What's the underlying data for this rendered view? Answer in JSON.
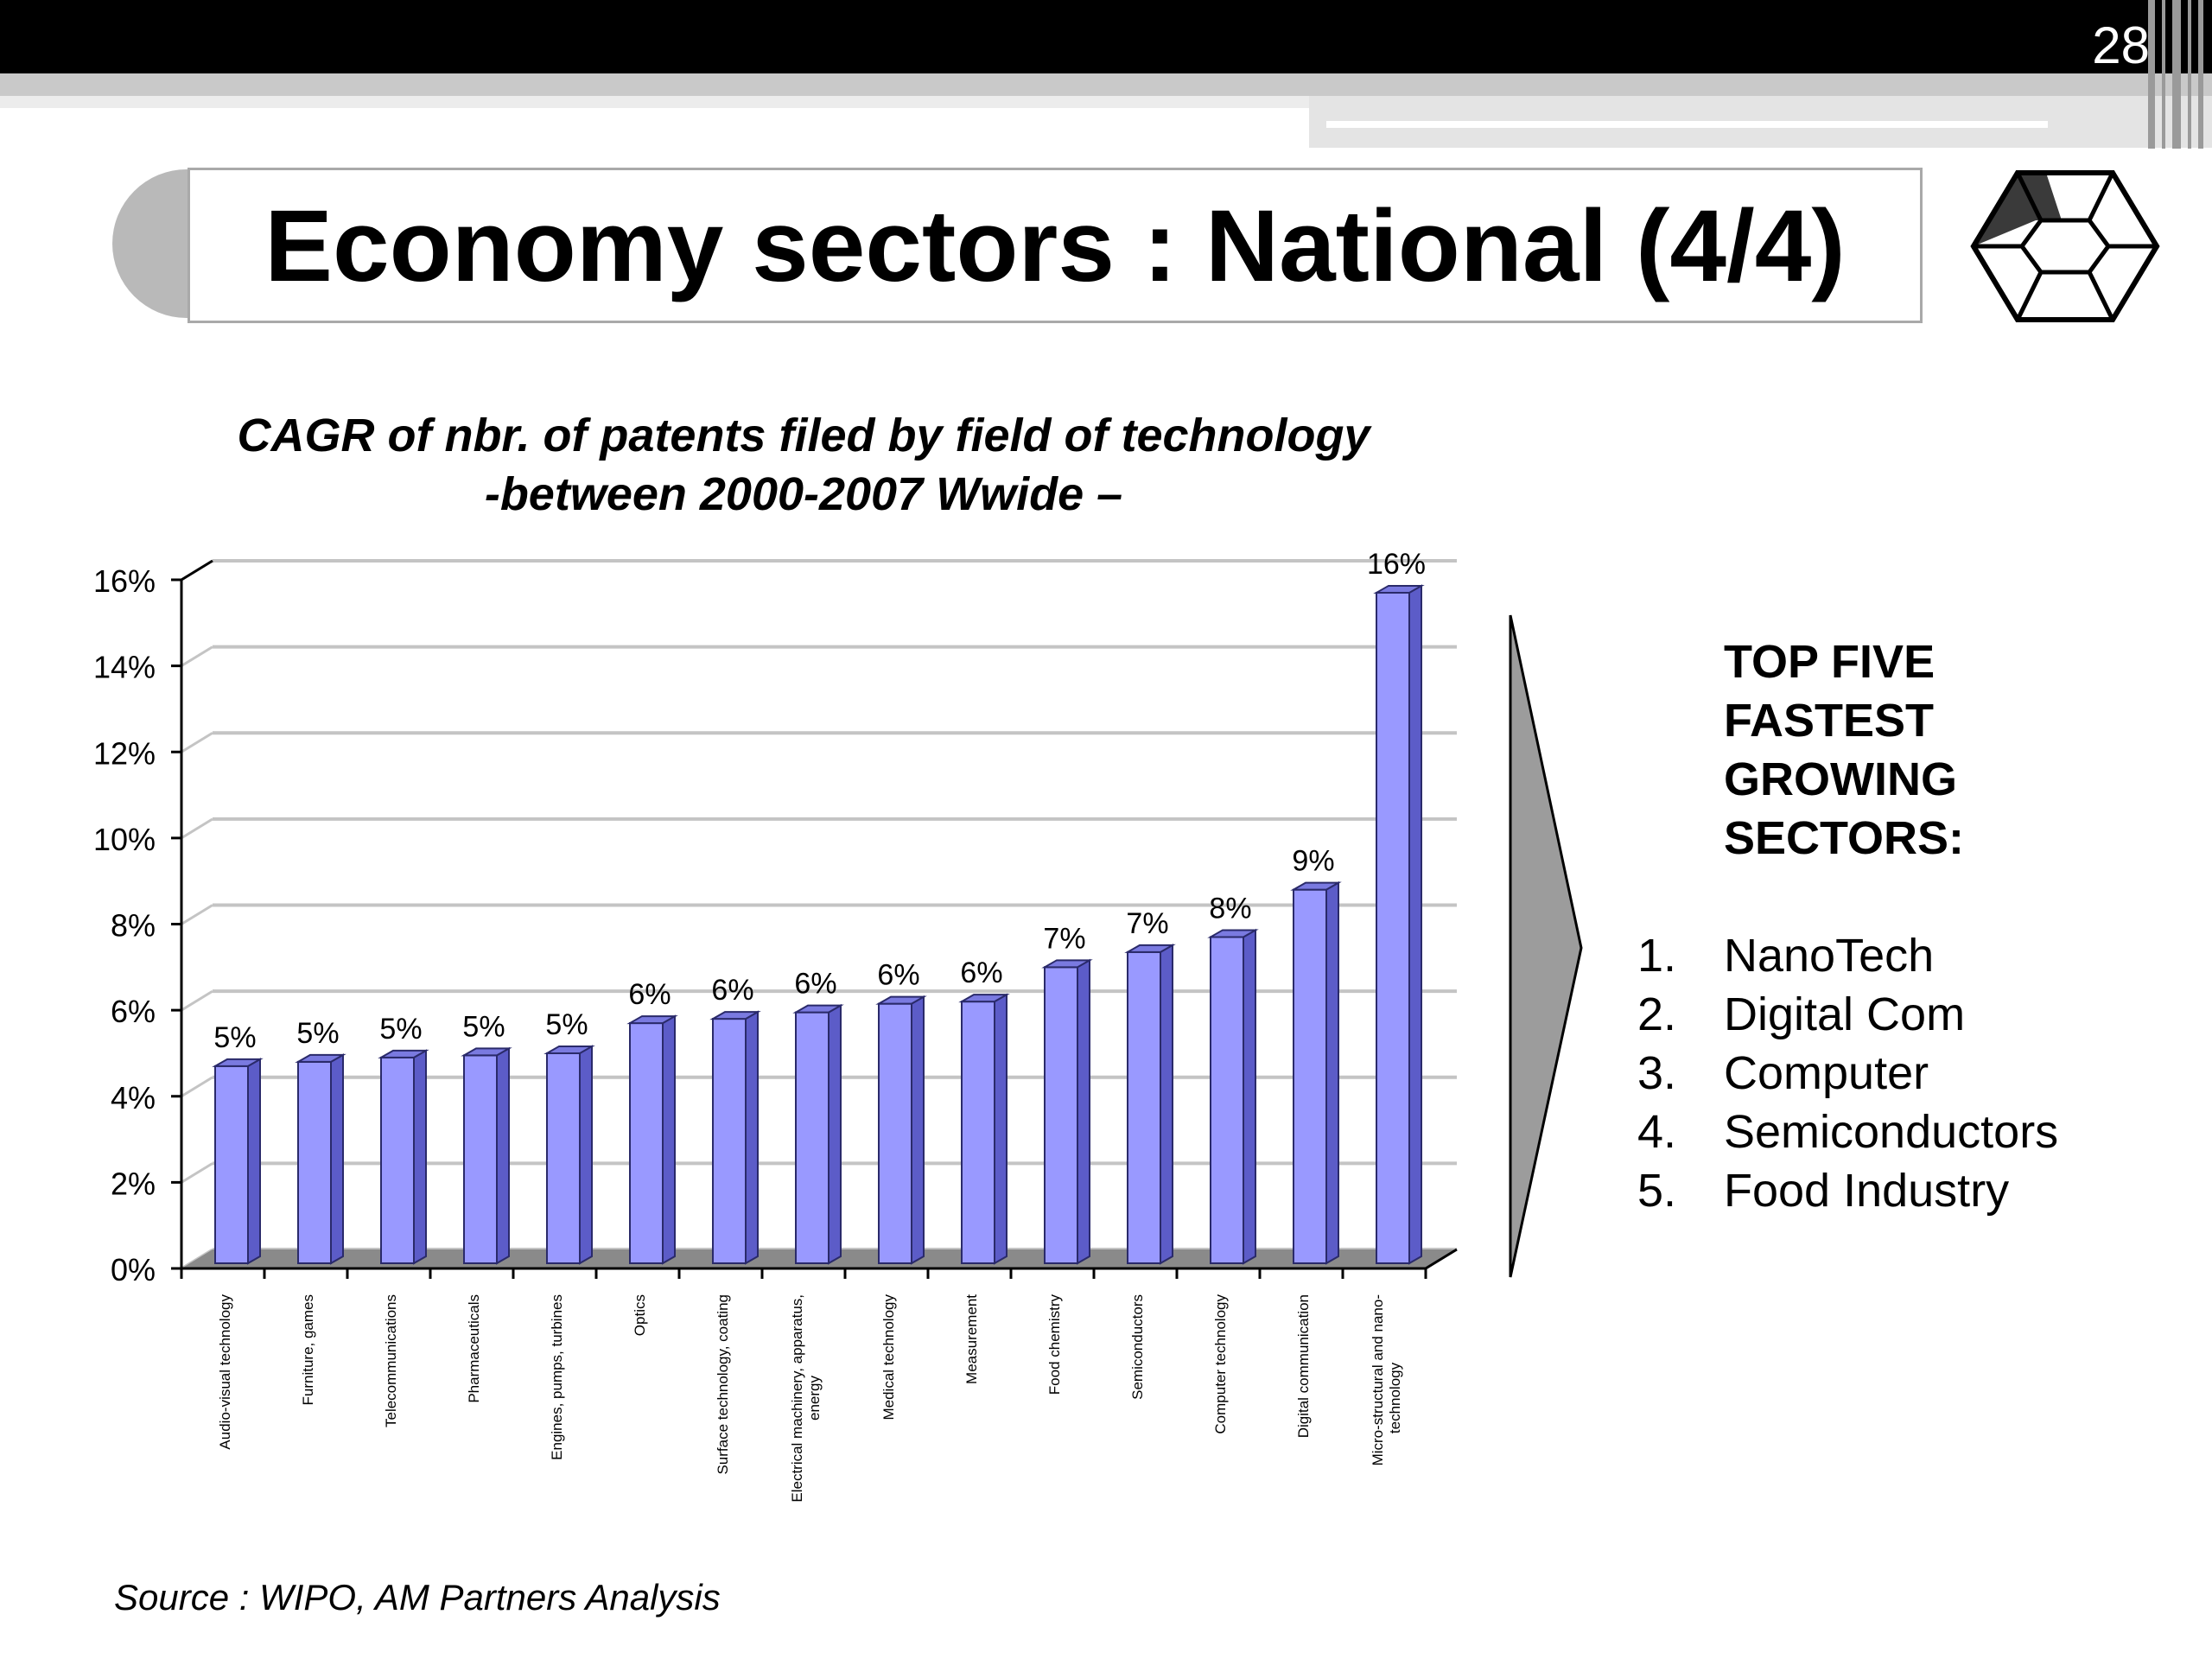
{
  "slide": {
    "page_number": "28",
    "title": "Economy sectors : National (4/4)",
    "source": "Source : WIPO, AM Partners Analysis"
  },
  "chart_data": {
    "type": "bar",
    "title_line1": "CAGR of nbr. of patents filed by field of technology",
    "title_line2": "-between 2000-2007 Wwide –",
    "categories": [
      "Audio-visual technology",
      "Furniture, games",
      "Telecommunications",
      "Pharmaceuticals",
      "Engines, pumps, turbines",
      "Optics",
      "Surface technology, coating",
      "Electrical machinery, apparatus, energy",
      "Medical technology",
      "Measurement",
      "Food chemistry",
      "Semiconductors",
      "Computer technology",
      "Digital communication",
      "Micro-structural and nano-technology"
    ],
    "category_lines": [
      [
        "Audio-visual technology"
      ],
      [
        "Furniture, games"
      ],
      [
        "Telecommunications"
      ],
      [
        "Pharmaceuticals"
      ],
      [
        "Engines, pumps, turbines"
      ],
      [
        "Optics"
      ],
      [
        "Surface technology, coating"
      ],
      [
        "Electrical machinery, apparatus,",
        "energy"
      ],
      [
        "Medical technology"
      ],
      [
        "Measurement"
      ],
      [
        "Food chemistry"
      ],
      [
        "Semiconductors"
      ],
      [
        "Computer technology"
      ],
      [
        "Digital communication"
      ],
      [
        "Micro-structural and nano-",
        "technology"
      ]
    ],
    "values": [
      4.7,
      4.8,
      4.9,
      4.95,
      5.0,
      5.7,
      5.8,
      5.95,
      6.15,
      6.2,
      7.0,
      7.35,
      7.7,
      8.8,
      15.7
    ],
    "data_labels": [
      "5%",
      "5%",
      "5%",
      "5%",
      "5%",
      "6%",
      "6%",
      "6%",
      "6%",
      "6%",
      "7%",
      "7%",
      "8%",
      "9%",
      "16%"
    ],
    "ylim": [
      0,
      16
    ],
    "y_ticks": [
      0,
      2,
      4,
      6,
      8,
      10,
      12,
      14,
      16
    ],
    "y_tick_labels": [
      "0%",
      "2%",
      "4%",
      "6%",
      "8%",
      "10%",
      "12%",
      "14%",
      "16%"
    ],
    "grid": true,
    "bar_color": "#9999ff",
    "bar_side_color": "#5c5cc8",
    "bar_top_color": "#7a7ae0",
    "floor_color": "#8a8a8a"
  },
  "top_five": {
    "heading_lines": [
      "TOP FIVE",
      "FASTEST",
      "GROWING",
      "SECTORS:"
    ],
    "items": [
      {
        "num": "1.",
        "label": "NanoTech"
      },
      {
        "num": "2.",
        "label": "Digital Com"
      },
      {
        "num": "3.",
        "label": "Computer"
      },
      {
        "num": "4.",
        "label": "Semiconductors"
      },
      {
        "num": "5.",
        "label": "Food Industry"
      }
    ]
  }
}
